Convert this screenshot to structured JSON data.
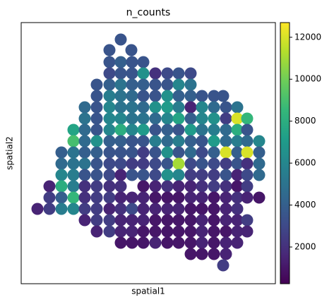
{
  "chart_data": {
    "type": "scatter",
    "title": "n_counts",
    "x_label": "spatial1",
    "y_label": "spatial2",
    "xlim": [
      0,
      360
    ],
    "ylim": [
      370,
      0
    ],
    "colormap": "viridis",
    "clim": [
      250,
      12700
    ],
    "cticks": [
      2000,
      4000,
      6000,
      8000,
      10000,
      12000
    ],
    "x": [
      141,
      125,
      156,
      125,
      141,
      157,
      173,
      125,
      141,
      157,
      173,
      190,
      207,
      223,
      240,
      107,
      125,
      141,
      157,
      173,
      190,
      207,
      223,
      240,
      107,
      125,
      141,
      157,
      173,
      190,
      207,
      223,
      240,
      256,
      273,
      286,
      90,
      107,
      125,
      141,
      157,
      173,
      190,
      207,
      223,
      240,
      256,
      273,
      290,
      306,
      90,
      107,
      125,
      141,
      157,
      173,
      190,
      207,
      223,
      240,
      256,
      273,
      290,
      306,
      320,
      74,
      90,
      107,
      125,
      141,
      157,
      173,
      190,
      207,
      223,
      240,
      256,
      273,
      290,
      306,
      320,
      74,
      90,
      107,
      125,
      141,
      157,
      173,
      190,
      207,
      223,
      240,
      256,
      273,
      290,
      306,
      320,
      337,
      57,
      74,
      90,
      107,
      125,
      141,
      157,
      173,
      190,
      207,
      223,
      240,
      256,
      273,
      290,
      306,
      320,
      337,
      57,
      74,
      90,
      107,
      125,
      141,
      157,
      173,
      190,
      207,
      223,
      240,
      256,
      273,
      290,
      306,
      320,
      337,
      57,
      74,
      90,
      107,
      125,
      141,
      157,
      173,
      190,
      207,
      223,
      240,
      256,
      273,
      290,
      306,
      320,
      337,
      40,
      57,
      74,
      90,
      107,
      125,
      141,
      173,
      190,
      207,
      223,
      240,
      256,
      273,
      290,
      306,
      320,
      40,
      57,
      74,
      90,
      107,
      125,
      141,
      157,
      173,
      190,
      207,
      223,
      240,
      256,
      273,
      290,
      306,
      320,
      337,
      23,
      40,
      57,
      74,
      90,
      107,
      125,
      141,
      157,
      173,
      190,
      207,
      223,
      240,
      256,
      273,
      290,
      306,
      90,
      107,
      125,
      141,
      157,
      173,
      190,
      207,
      223,
      240,
      256,
      273,
      290,
      306,
      320,
      107,
      125,
      141,
      157,
      173,
      190,
      207,
      223,
      240,
      256,
      273,
      290,
      306,
      320,
      141,
      157,
      173,
      190,
      207,
      223,
      240,
      256,
      273,
      290,
      306,
      240,
      256,
      273,
      290,
      286
    ],
    "y": [
      24,
      39,
      39,
      56,
      56,
      56,
      56,
      72,
      72,
      72,
      72,
      72,
      72,
      72,
      72,
      88,
      88,
      88,
      88,
      88,
      88,
      88,
      88,
      88,
      104,
      104,
      104,
      104,
      104,
      104,
      104,
      104,
      104,
      104,
      104,
      104,
      120,
      120,
      120,
      120,
      120,
      120,
      120,
      120,
      120,
      120,
      120,
      120,
      120,
      120,
      136,
      136,
      136,
      136,
      136,
      136,
      136,
      136,
      136,
      136,
      136,
      136,
      136,
      136,
      136,
      152,
      152,
      152,
      152,
      152,
      152,
      152,
      152,
      152,
      152,
      152,
      152,
      152,
      152,
      152,
      152,
      168,
      168,
      168,
      168,
      168,
      168,
      168,
      168,
      168,
      168,
      168,
      168,
      168,
      168,
      168,
      168,
      168,
      184,
      184,
      184,
      184,
      184,
      184,
      184,
      184,
      184,
      184,
      184,
      184,
      184,
      184,
      184,
      184,
      184,
      184,
      200,
      200,
      200,
      200,
      200,
      200,
      200,
      200,
      200,
      200,
      200,
      200,
      200,
      200,
      200,
      200,
      200,
      200,
      216,
      216,
      216,
      216,
      216,
      216,
      216,
      216,
      216,
      216,
      216,
      216,
      216,
      216,
      216,
      216,
      216,
      216,
      232,
      232,
      232,
      232,
      232,
      232,
      232,
      232,
      232,
      232,
      232,
      232,
      232,
      232,
      232,
      232,
      232,
      248,
      248,
      248,
      248,
      248,
      248,
      248,
      248,
      248,
      248,
      248,
      248,
      248,
      248,
      248,
      248,
      248,
      248,
      248,
      264,
      264,
      264,
      264,
      264,
      264,
      264,
      264,
      264,
      264,
      264,
      264,
      264,
      264,
      264,
      264,
      264,
      264,
      280,
      280,
      280,
      280,
      280,
      280,
      280,
      280,
      280,
      280,
      280,
      280,
      280,
      280,
      280,
      296,
      296,
      296,
      296,
      296,
      296,
      296,
      296,
      296,
      296,
      296,
      296,
      296,
      296,
      312,
      312,
      312,
      312,
      312,
      312,
      312,
      312,
      312,
      312,
      312,
      328,
      328,
      328,
      328,
      344
    ],
    "values": [
      3500,
      3500,
      3500,
      3500,
      4000,
      3500,
      3500,
      3000,
      3500,
      3500,
      6500,
      2000,
      3000,
      3500,
      3000,
      3500,
      4000,
      5000,
      4000,
      4000,
      3500,
      3500,
      6000,
      5000,
      3500,
      5500,
      5000,
      4500,
      3500,
      3500,
      6500,
      4000,
      4000,
      3500,
      3500,
      3500,
      4500,
      3500,
      6000,
      5000,
      5000,
      4500,
      6500,
      7000,
      5500,
      1500,
      6000,
      4500,
      3500,
      5000,
      5000,
      3500,
      6000,
      6000,
      5000,
      5000,
      4500,
      6000,
      7500,
      4000,
      6000,
      6500,
      2500,
      12000,
      8500,
      7500,
      4500,
      3500,
      6000,
      8000,
      6000,
      7000,
      3500,
      4000,
      3500,
      7000,
      5000,
      5500,
      4500,
      8000,
      3500,
      9000,
      4500,
      6500,
      4000,
      4000,
      3500,
      3500,
      5500,
      4500,
      5500,
      4000,
      3500,
      7000,
      4500,
      5500,
      4500,
      6000,
      4000,
      5000,
      4000,
      4000,
      3500,
      3500,
      3500,
      2500,
      3500,
      6500,
      3500,
      4500,
      3000,
      4000,
      12000,
      4000,
      12000,
      4000,
      4500,
      5000,
      5000,
      3500,
      3000,
      3000,
      2500,
      2500,
      3000,
      3500,
      11000,
      3000,
      3500,
      3000,
      2500,
      3500,
      2000,
      4500,
      6000,
      5500,
      3500,
      3500,
      3000,
      1500,
      3500,
      3500,
      3000,
      6500,
      6000,
      2500,
      2500,
      2500,
      3500,
      1500,
      3000,
      4500,
      1500,
      8000,
      5500,
      2000,
      2500,
      2000,
      2000,
      1000,
      1500,
      2000,
      1500,
      1500,
      2000,
      2500,
      2000,
      1000,
      2500,
      2500,
      4000,
      8500,
      2000,
      2500,
      2500,
      1500,
      1500,
      1500,
      1000,
      1000,
      1000,
      1500,
      1500,
      1000,
      1500,
      2000,
      1500,
      1000,
      1500,
      2500,
      5500,
      6000,
      2500,
      2500,
      1500,
      2000,
      3000,
      1500,
      1500,
      1500,
      1500,
      1000,
      1000,
      1000,
      1500,
      2000,
      1500,
      2500,
      2500,
      1500,
      1500,
      1500,
      1000,
      1000,
      1000,
      1000,
      1500,
      1000,
      1500,
      1500,
      2500,
      1500,
      2500,
      1500,
      1500,
      1000,
      1000,
      1000,
      1000,
      1000,
      1500,
      1000,
      1000,
      1500,
      1500,
      1000,
      1000,
      1000,
      1500,
      1000,
      1000,
      1000,
      1500,
      1000,
      1500,
      1500,
      1000,
      1000,
      1000,
      1500,
      2500
    ]
  }
}
